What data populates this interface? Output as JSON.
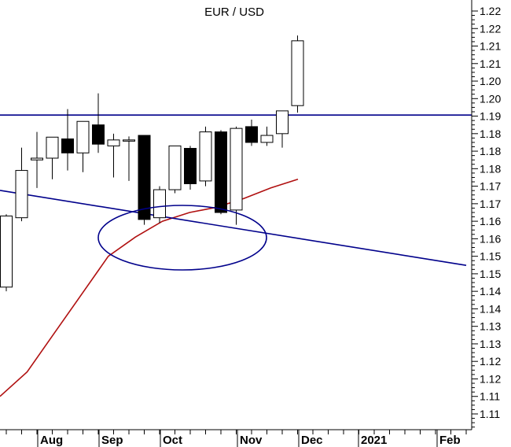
{
  "chart_data": {
    "type": "candlestick",
    "title": "EUR / USD",
    "y_ticks": [
      "1.22",
      "1.22",
      "1.21",
      "1.21",
      "1.20",
      "1.20",
      "1.19",
      "1.18",
      "1.18",
      "1.18",
      "1.17",
      "1.17",
      "1.16",
      "1.16",
      "1.15",
      "1.15",
      "1.14",
      "1.14",
      "1.13",
      "1.13",
      "1.12",
      "1.12",
      "1.11",
      "1.11"
    ],
    "x_labels": [
      "Aug",
      "Sep",
      "Oct",
      "Nov",
      "Dec",
      "2021",
      "Feb"
    ],
    "candles": [
      {
        "open": 1.1412,
        "high": 1.162,
        "low": 1.14,
        "close": 1.1615
      },
      {
        "open": 1.161,
        "high": 1.181,
        "low": 1.16,
        "close": 1.1745
      },
      {
        "open": 1.1775,
        "high": 1.1855,
        "low": 1.1695,
        "close": 1.178
      },
      {
        "open": 1.178,
        "high": 1.184,
        "low": 1.172,
        "close": 1.184
      },
      {
        "open": 1.1835,
        "high": 1.192,
        "low": 1.1745,
        "close": 1.1795
      },
      {
        "open": 1.1795,
        "high": 1.1885,
        "low": 1.174,
        "close": 1.1885
      },
      {
        "open": 1.1875,
        "high": 1.1965,
        "low": 1.1795,
        "close": 1.182
      },
      {
        "open": 1.1815,
        "high": 1.185,
        "low": 1.1725,
        "close": 1.1832
      },
      {
        "open": 1.1832,
        "high": 1.1842,
        "low": 1.1715,
        "close": 1.1832
      },
      {
        "open": 1.1845,
        "high": 1.1845,
        "low": 1.159,
        "close": 1.1605
      },
      {
        "open": 1.161,
        "high": 1.17,
        "low": 1.1595,
        "close": 1.169
      },
      {
        "open": 1.169,
        "high": 1.1815,
        "low": 1.168,
        "close": 1.1815
      },
      {
        "open": 1.1808,
        "high": 1.1815,
        "low": 1.169,
        "close": 1.1707
      },
      {
        "open": 1.1715,
        "high": 1.187,
        "low": 1.17,
        "close": 1.1855
      },
      {
        "open": 1.1855,
        "high": 1.186,
        "low": 1.162,
        "close": 1.1625
      },
      {
        "open": 1.1632,
        "high": 1.187,
        "low": 1.159,
        "close": 1.1865
      },
      {
        "open": 1.187,
        "high": 1.189,
        "low": 1.1815,
        "close": 1.1825
      },
      {
        "open": 1.1825,
        "high": 1.187,
        "low": 1.1815,
        "close": 1.1845
      },
      {
        "open": 1.185,
        "high": 1.1915,
        "low": 1.181,
        "close": 1.1915
      },
      {
        "open": 1.193,
        "high": 1.213,
        "low": 1.191,
        "close": 1.2115
      }
    ],
    "moving_average": [
      1.11,
      1.117,
      1.128,
      1.139,
      1.15,
      1.1555,
      1.16,
      1.1625,
      1.164,
      1.1665,
      1.1695,
      1.172
    ],
    "horizontal_line": 1.1903,
    "trend_line": {
      "start": 1.1688,
      "end": 1.1474
    },
    "ylim": [
      1.1065,
      1.2225
    ],
    "colors": {
      "candle": "#000000",
      "trend_lines": "#00008b",
      "moving_average": "#b01010",
      "ellipse": "#00008b"
    }
  }
}
